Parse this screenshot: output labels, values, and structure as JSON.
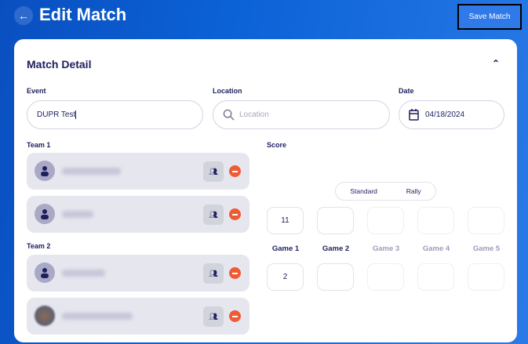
{
  "header": {
    "title": "Edit Match",
    "save_label": "Save Match",
    "back_icon": "arrow-left-icon"
  },
  "card": {
    "title": "Match Detail",
    "collapse_icon": "chevron-up-icon"
  },
  "fields": {
    "event": {
      "label": "Event",
      "value": "DUPR Test"
    },
    "location": {
      "label": "Location",
      "placeholder": "Location",
      "value": ""
    },
    "date": {
      "label": "Date",
      "value": "04/18/2024"
    }
  },
  "teams": [
    {
      "label": "Team 1",
      "players": 2
    },
    {
      "label": "Team 2",
      "players": 2
    }
  ],
  "score": {
    "label": "Score",
    "modes": [
      "Standard",
      "Rally"
    ],
    "games": [
      "Game 1",
      "Game 2",
      "Game 3",
      "Game 4",
      "Game 5"
    ],
    "team1": [
      "11",
      "",
      "",
      "",
      ""
    ],
    "team2": [
      "2",
      "",
      "",
      "",
      ""
    ]
  },
  "colors": {
    "accent": "#0b62d6",
    "remove": "#ef5b34",
    "text": "#1d1f5e"
  }
}
